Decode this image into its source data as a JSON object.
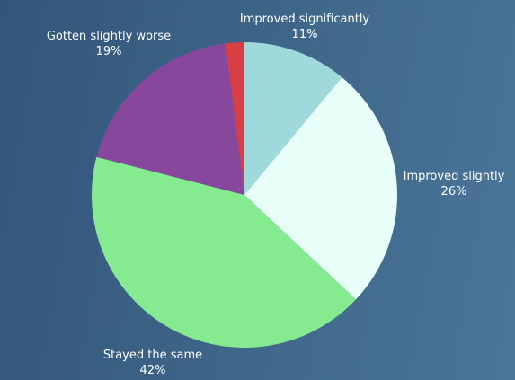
{
  "chart_data": {
    "type": "pie",
    "title": "",
    "slices": [
      {
        "label": "Improved significantly",
        "value": 11,
        "display": "11%",
        "color": "#a0d9dc"
      },
      {
        "label": "Improved slightly",
        "value": 26,
        "display": "26%",
        "color": "#e8fff9"
      },
      {
        "label": "Stayed the same",
        "value": 42,
        "display": "42%",
        "color": "#86ea90"
      },
      {
        "label": "Gotten slightly worse",
        "value": 19,
        "display": "19%",
        "color": "#87479c"
      },
      {
        "label": "",
        "value": 2,
        "display": "",
        "color": "#d83f45"
      }
    ],
    "legend": "none"
  }
}
